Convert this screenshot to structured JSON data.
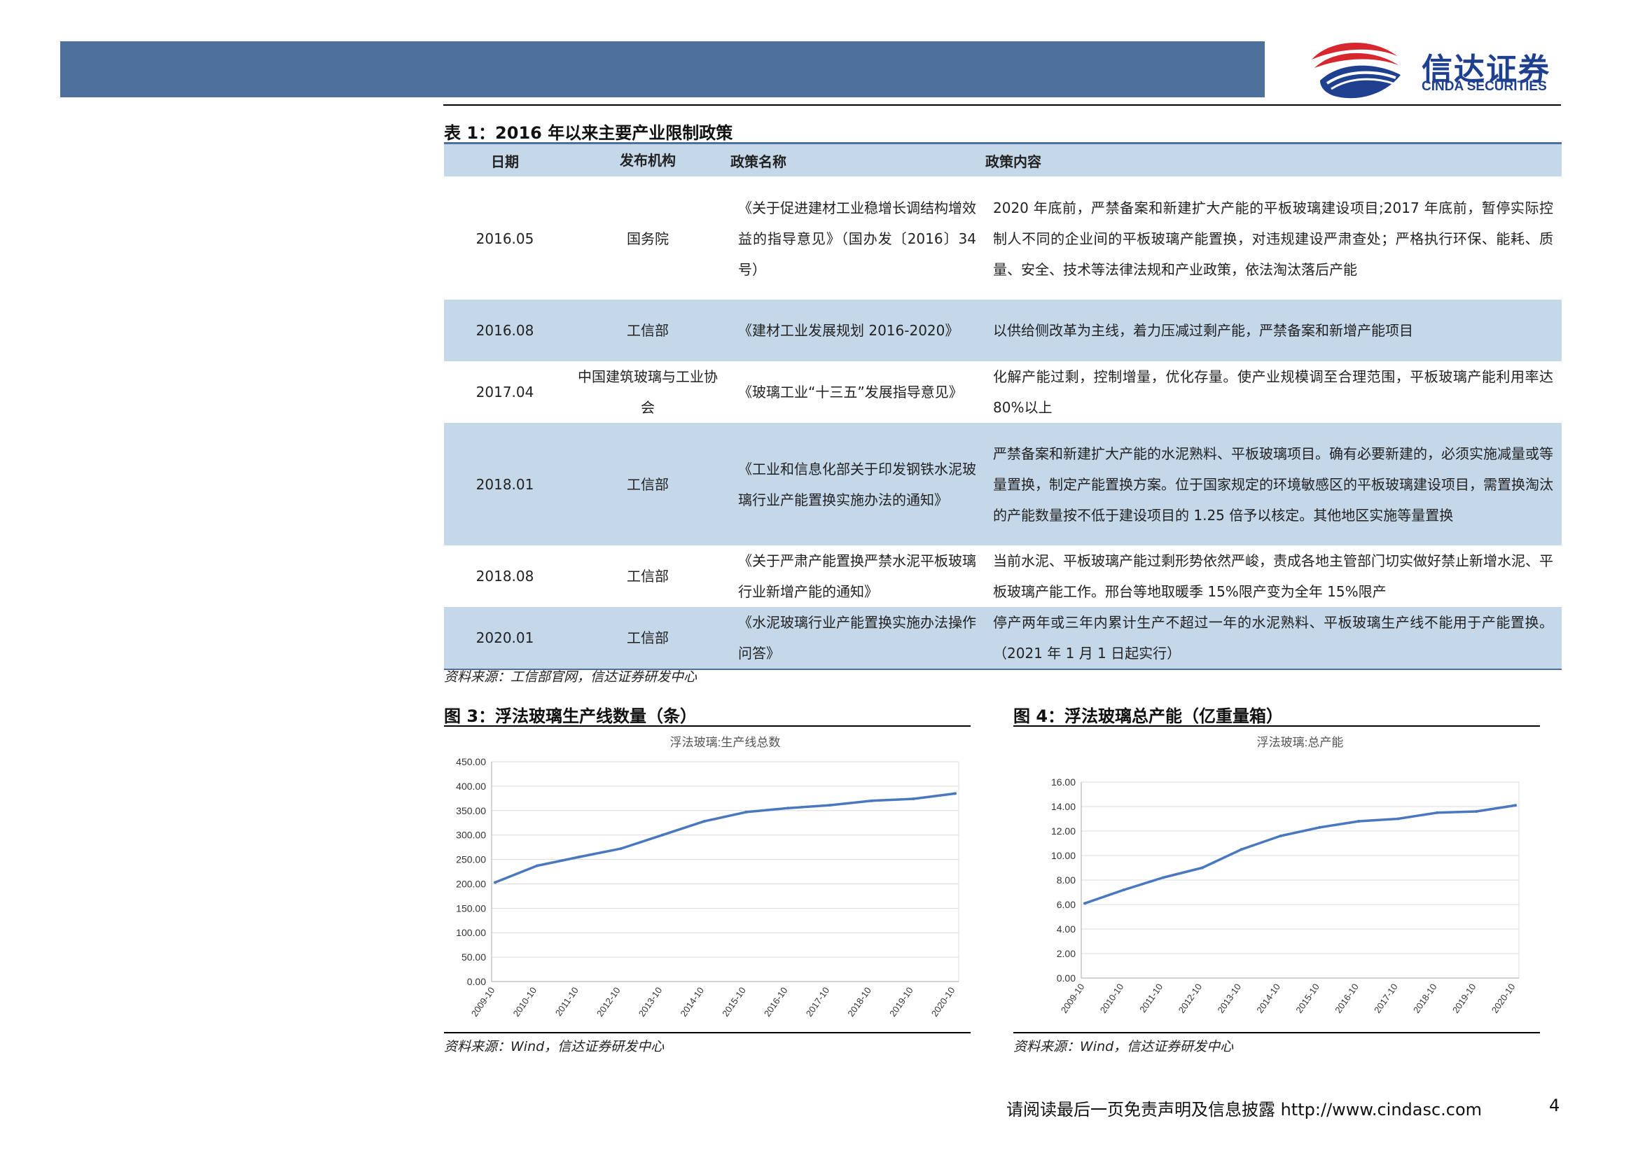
{
  "logo": {
    "cn": "信达证券",
    "en": "CINDA SECURITIES",
    "colors": {
      "red": "#d7262e",
      "navy": "#1f3f8f"
    }
  },
  "table": {
    "title": "表 1：2016 年以来主要产业限制政策",
    "headers": [
      "日期",
      "发布机构",
      "政策名称",
      "政策内容"
    ],
    "rows": [
      {
        "date": "2016.05",
        "org": "国务院",
        "name": "《关于促进建材工业稳增长调结构增效益的指导意见》（国办发〔2016〕34 号）",
        "content": "2020 年底前，严禁备案和新建扩大产能的平板玻璃建设项目;2017 年底前，暂停实际控制人不同的企业间的平板玻璃产能置换，对违规建设严肃查处；严格执行环保、能耗、质量、安全、技术等法律法规和产业政策，依法淘汰落后产能"
      },
      {
        "date": "2016.08",
        "org": "工信部",
        "name": "《建材工业发展规划 2016-2020》",
        "content": "以供给侧改革为主线，着力压减过剩产能，严禁备案和新增产能项目"
      },
      {
        "date": "2017.04",
        "org": "中国建筑玻璃与工业协会",
        "name": "《玻璃工业“十三五”发展指导意见》",
        "content": "化解产能过剩，控制增量，优化存量。使产业规模调至合理范围，平板玻璃产能利用率达 80%以上"
      },
      {
        "date": "2018.01",
        "org": "工信部",
        "name": "《工业和信息化部关于印发钢铁水泥玻璃行业产能置换实施办法的通知》",
        "content": "严禁备案和新建扩大产能的水泥熟料、平板玻璃项目。确有必要新建的，必须实施减量或等量置换，制定产能置换方案。位于国家规定的环境敏感区的平板玻璃建设项目，需置换淘汰的产能数量按不低于建设项目的 1.25 倍予以核定。其他地区实施等量置换"
      },
      {
        "date": "2018.08",
        "org": "工信部",
        "name": "《关于严肃产能置换严禁水泥平板玻璃行业新增产能的通知》",
        "content": "当前水泥、平板玻璃产能过剩形势依然严峻，责成各地主管部门切实做好禁止新增水泥、平板玻璃产能工作。邢台等地取暖季 15%限产变为全年 15%限产"
      },
      {
        "date": "2020.01",
        "org": "工信部",
        "name": "《水泥玻璃行业产能置换实施办法操作问答》",
        "content": "停产两年或三年内累计生产不超过一年的水泥熟料、平板玻璃生产线不能用于产能置换。（2021 年 1 月 1 日起实行）"
      }
    ],
    "source": "资料来源：工信部官网，信达证券研发中心"
  },
  "fig3": {
    "title": "图 3：浮法玻璃生产线数量（条）",
    "source": "资料来源：Wind，信达证券研发中心"
  },
  "fig4": {
    "title": "图 4：浮法玻璃总产能（亿重量箱）",
    "source": "资料来源：Wind，信达证券研发中心"
  },
  "chart_data": [
    {
      "type": "line",
      "title": "浮法玻璃:生产线总数",
      "ylim": [
        0,
        450
      ],
      "yticks": [
        "0.00",
        "50.00",
        "100.00",
        "150.00",
        "200.00",
        "250.00",
        "300.00",
        "350.00",
        "400.00",
        "450.00"
      ],
      "categories": [
        "2009-10",
        "2010-10",
        "2011-10",
        "2012-10",
        "2013-10",
        "2014-10",
        "2015-10",
        "2016-10",
        "2017-10",
        "2018-10",
        "2019-10",
        "2020-10"
      ],
      "series": [
        {
          "color": "#4a78bf",
          "values": [
            203,
            237,
            255,
            272,
            300,
            328,
            347,
            355,
            361,
            370,
            374,
            385
          ]
        }
      ]
    },
    {
      "type": "line",
      "title": "浮法玻璃:总产能",
      "ylim": [
        0,
        16
      ],
      "yticks": [
        "0.00",
        "2.00",
        "4.00",
        "6.00",
        "8.00",
        "10.00",
        "12.00",
        "14.00",
        "16.00"
      ],
      "categories": [
        "2009-10",
        "2010-10",
        "2011-10",
        "2012-10",
        "2013-10",
        "2014-10",
        "2015-10",
        "2016-10",
        "2017-10",
        "2018-10",
        "2019-10",
        "2020-10"
      ],
      "series": [
        {
          "color": "#4a78bf",
          "values": [
            6.1,
            7.2,
            8.2,
            9.0,
            10.5,
            11.6,
            12.3,
            12.8,
            13.0,
            13.5,
            13.6,
            14.1
          ]
        }
      ]
    }
  ],
  "footer": {
    "text": "请阅读最后一页免责声明及信息披露 http://www.cindasc.com",
    "page": "4"
  }
}
